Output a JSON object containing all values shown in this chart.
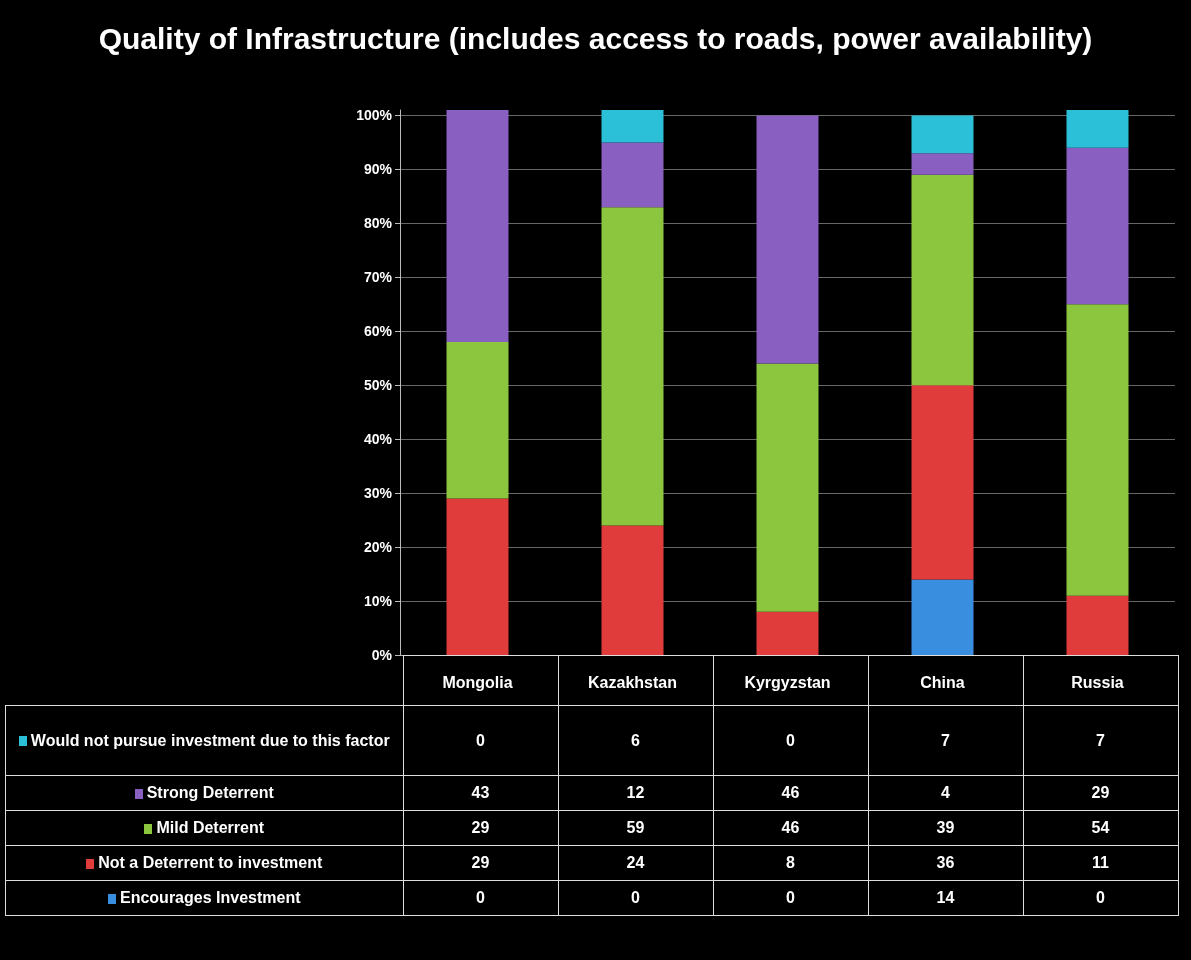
{
  "chart_data": {
    "type": "bar",
    "title": "Quality of Infrastructure (includes access to roads, power availability)",
    "categories": [
      "Mongolia",
      "Kazakhstan",
      "Kyrgyzstan",
      "China",
      "Russia"
    ],
    "stacked": true,
    "data_labels": true,
    "legend": "bottom left",
    "grid": "y",
    "ylim": [
      0,
      101
    ],
    "yticks": [
      {
        "value": 0,
        "label": "0%"
      },
      {
        "value": 10,
        "label": "10%"
      },
      {
        "value": 20,
        "label": "20%"
      },
      {
        "value": 30,
        "label": "30%"
      },
      {
        "value": 40,
        "label": "40%"
      },
      {
        "value": 50,
        "label": "50%"
      },
      {
        "value": 60,
        "label": "60%"
      },
      {
        "value": 70,
        "label": "70%"
      },
      {
        "value": 80,
        "label": "80%"
      },
      {
        "value": 90,
        "label": "90%"
      },
      {
        "value": 100,
        "label": "100%"
      }
    ],
    "series": [
      {
        "name": "Encourages Investment",
        "color": "#3a8ee0",
        "values": [
          0,
          0,
          0,
          14,
          0
        ]
      },
      {
        "name": "Not a Deterrent to investment",
        "color": "#e03c3c",
        "values": [
          29,
          24,
          8,
          36,
          11
        ]
      },
      {
        "name": "Mild Deterrent",
        "color": "#8cc63f",
        "values": [
          29,
          59,
          46,
          39,
          54
        ]
      },
      {
        "name": "Strong Deterrent",
        "color": "#8a5fc2",
        "values": [
          43,
          12,
          46,
          4,
          29
        ]
      },
      {
        "name": "Would not pursue investment due to this factor",
        "color": "#2bbfd8",
        "values": [
          0,
          6,
          0,
          7,
          7
        ]
      }
    ]
  }
}
